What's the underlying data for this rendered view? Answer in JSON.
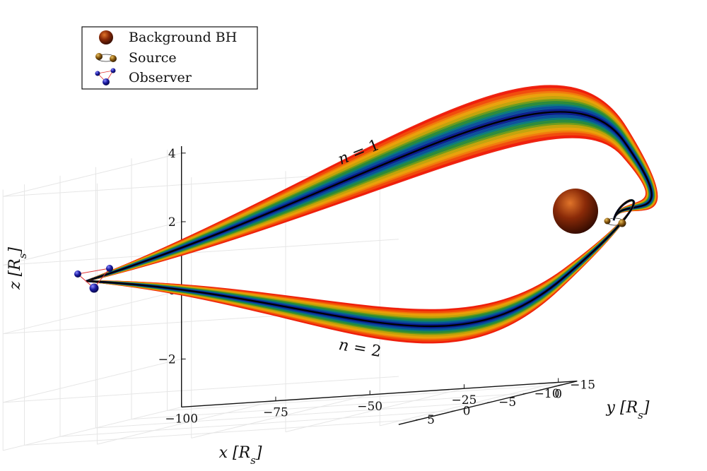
{
  "chart_data": {
    "type": "line",
    "projection": "3d",
    "title": "",
    "axes": {
      "x": {
        "label": "x [R_s]",
        "label_parts": [
          "x",
          "[",
          "R",
          "s",
          "]"
        ],
        "ticks": [
          -100,
          -75,
          -50,
          -25,
          0
        ],
        "tick_labels": [
          "−100",
          "−75",
          "−50",
          "−25",
          "0"
        ],
        "range": [
          -100,
          5
        ]
      },
      "y": {
        "label": "y [R_s]",
        "label_parts": [
          "y",
          "[",
          "R",
          "s",
          "]"
        ],
        "ticks": [
          -15,
          -10,
          -5,
          0,
          5
        ],
        "tick_labels": [
          "−15",
          "−10",
          "−5",
          "0",
          "5"
        ],
        "range": [
          -17,
          8
        ]
      },
      "z": {
        "label": "z [R_s]",
        "label_parts": [
          "z",
          "[",
          "R",
          "s",
          "]"
        ],
        "ticks": [
          -2,
          0,
          2,
          4
        ],
        "tick_labels": [
          "−2",
          "0",
          "2",
          "4"
        ],
        "range": [
          -3.4,
          4.2
        ]
      }
    },
    "grid": true,
    "legend": {
      "position": "top-left",
      "entries": [
        {
          "label": "Background BH",
          "marker": "sphere",
          "color": "#8a2a0a"
        },
        {
          "label": "Source",
          "marker": "binary-orbit",
          "color": "#8a5a10"
        },
        {
          "label": "Observer",
          "marker": "triangle-spheres",
          "color": "#1a1a9a"
        }
      ]
    },
    "annotations": [
      {
        "text": "n = 1",
        "text_parts": [
          "n",
          "=",
          "1"
        ]
      },
      {
        "text": "n = 2",
        "text_parts": [
          "n",
          "=",
          "2"
        ]
      }
    ],
    "series": [
      {
        "annotation": "n = 1",
        "description_path": "observer → above background BH → source",
        "x": [
          -93,
          -75,
          -50,
          -25,
          -5,
          1,
          2
        ],
        "z": [
          -0.1,
          0.6,
          1.6,
          2.6,
          3.4,
          3.1,
          1.5
        ]
      },
      {
        "annotation": "n = 2",
        "description_path": "observer → below → source",
        "x": [
          -93,
          -75,
          -50,
          -25,
          -5,
          1,
          2
        ],
        "z": [
          -0.1,
          -0.4,
          -0.9,
          -1.4,
          -1.7,
          -0.8,
          1.5
        ]
      }
    ],
    "band_colormap": [
      "#0b1a8a",
      "#0a4e9a",
      "#0a7a7a",
      "#2a8a3a",
      "#6a9a1a",
      "#c2a20a",
      "#eaa00a",
      "#f07a0a",
      "#f04a0a",
      "#ee1c0a"
    ]
  }
}
